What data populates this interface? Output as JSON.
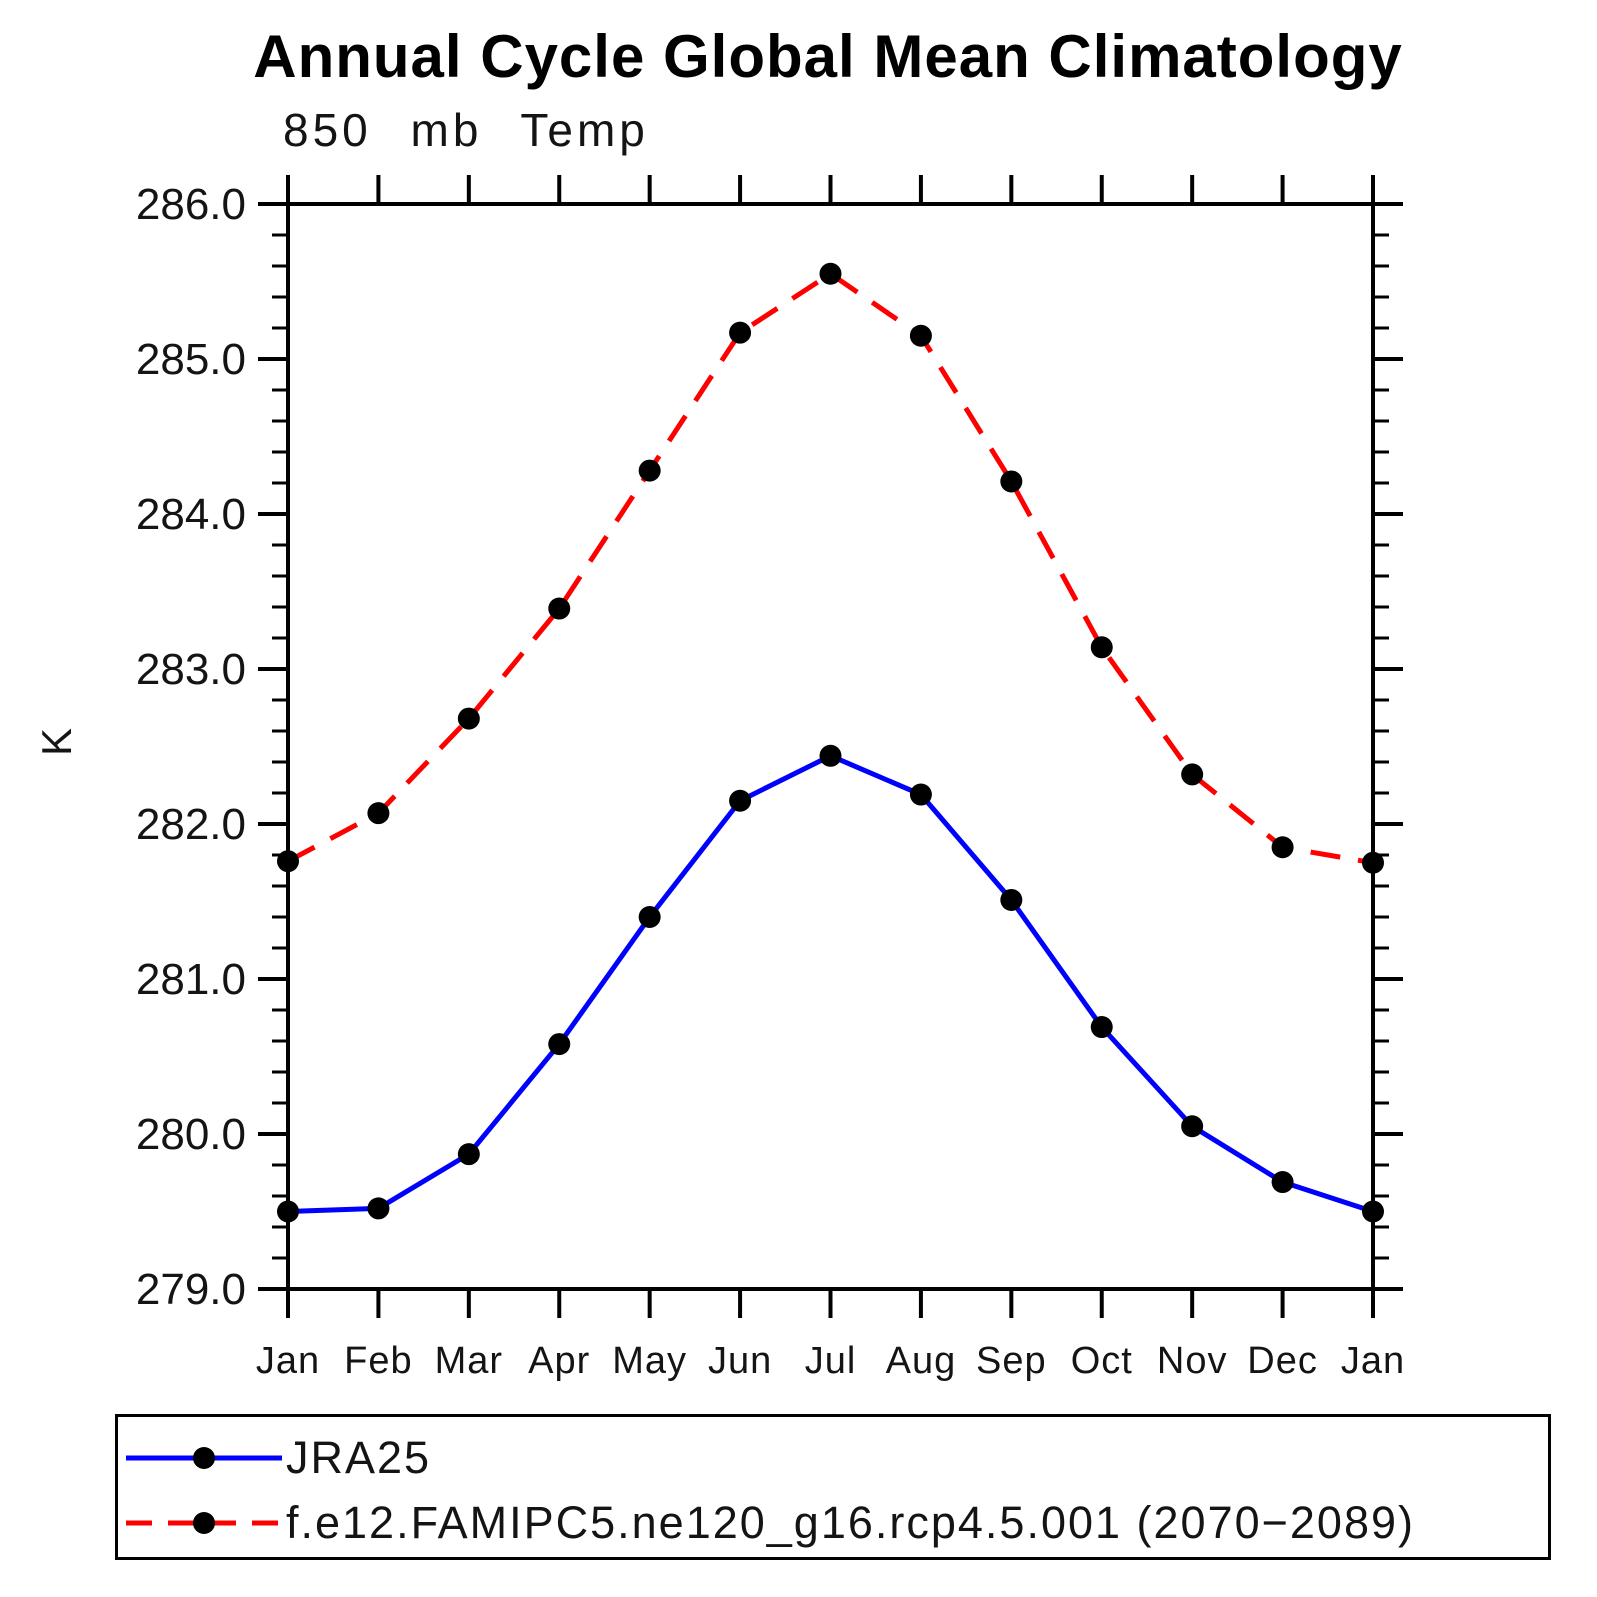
{
  "title": "Annual Cycle Global Mean Climatology",
  "subtitle": "850 mb Temp",
  "y_axis_title": "K",
  "colors": {
    "series1": "#0000ff",
    "series2": "#ff0000",
    "marker": "#000000",
    "axis": "#000000"
  },
  "legend": {
    "entries": [
      {
        "label": "JRA25",
        "color": "#0000ff",
        "style": "solid",
        "marker": "circle"
      },
      {
        "label": "f.e12.FAMIPC5.ne120_g16.rcp4.5.001 (2070−2089)",
        "color": "#ff0000",
        "style": "dashed",
        "marker": "circle"
      }
    ]
  },
  "chart_data": {
    "type": "line",
    "title": "Annual Cycle Global Mean Climatology",
    "subtitle": "850 mb Temp",
    "xlabel": "",
    "ylabel": "K",
    "categories": [
      "Jan",
      "Feb",
      "Mar",
      "Apr",
      "May",
      "Jun",
      "Jul",
      "Aug",
      "Sep",
      "Oct",
      "Nov",
      "Dec",
      "Jan"
    ],
    "series": [
      {
        "name": "JRA25",
        "color": "#0000ff",
        "line_style": "solid",
        "marker": "circle",
        "marker_color": "#000000",
        "values": [
          279.5,
          279.52,
          279.87,
          280.58,
          281.4,
          282.15,
          282.44,
          282.19,
          281.51,
          280.69,
          280.05,
          279.69,
          279.5
        ]
      },
      {
        "name": "f.e12.FAMIPC5.ne120_g16.rcp4.5.001 (2070−2089)",
        "color": "#ff0000",
        "line_style": "dashed",
        "marker": "circle",
        "marker_color": "#000000",
        "values": [
          281.76,
          282.07,
          282.68,
          283.39,
          284.28,
          285.17,
          285.55,
          285.15,
          284.21,
          283.14,
          282.32,
          281.85,
          281.75
        ]
      }
    ],
    "ylim": [
      279.0,
      286.0
    ],
    "ytick_step": 1.0,
    "ytick_minor_step": 0.2,
    "ytick_labels": [
      "279.0",
      "280.0",
      "281.0",
      "282.0",
      "283.0",
      "284.0",
      "285.0",
      "286.0"
    ],
    "grid": false,
    "legend_position": "bottom"
  }
}
